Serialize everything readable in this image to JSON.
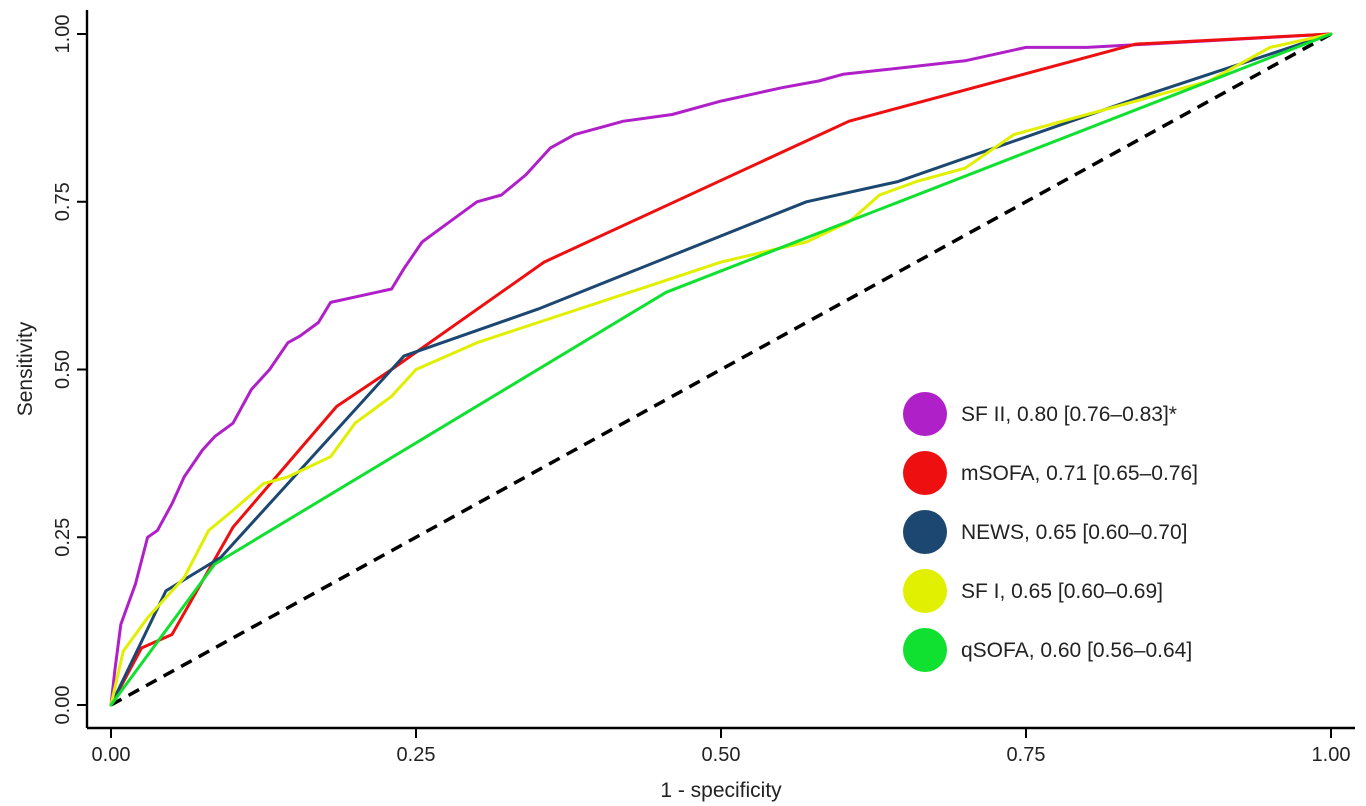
{
  "chart_data": {
    "type": "line",
    "xlabel": "1 - specificity",
    "ylabel": "Sensitivity",
    "xlim": [
      0,
      1
    ],
    "ylim": [
      0,
      1
    ],
    "x_ticks": [
      "0.00",
      "0.25",
      "0.50",
      "0.75",
      "1.00"
    ],
    "y_ticks": [
      "0.00",
      "0.25",
      "0.50",
      "0.75",
      "1.00"
    ],
    "grid": false,
    "legend_position": "bottom-right",
    "reference_line": {
      "x": [
        0,
        1
      ],
      "y": [
        0,
        1
      ],
      "style": "dashed",
      "color": "#000000"
    },
    "series": [
      {
        "name": "SF II, 0.80 [0.76–0.83]*",
        "color": "#b020c8",
        "x": [
          0,
          0.003,
          0.008,
          0.012,
          0.02,
          0.03,
          0.038,
          0.05,
          0.06,
          0.075,
          0.085,
          0.1,
          0.115,
          0.13,
          0.145,
          0.155,
          0.17,
          0.18,
          0.23,
          0.24,
          0.255,
          0.27,
          0.285,
          0.3,
          0.32,
          0.34,
          0.36,
          0.38,
          0.42,
          0.46,
          0.5,
          0.55,
          0.58,
          0.6,
          0.7,
          0.75,
          0.8,
          0.9,
          0.95,
          1.0
        ],
        "y": [
          0,
          0.05,
          0.12,
          0.14,
          0.18,
          0.25,
          0.26,
          0.3,
          0.34,
          0.38,
          0.4,
          0.42,
          0.47,
          0.5,
          0.54,
          0.55,
          0.57,
          0.6,
          0.62,
          0.65,
          0.69,
          0.71,
          0.73,
          0.75,
          0.76,
          0.79,
          0.83,
          0.85,
          0.87,
          0.88,
          0.9,
          0.92,
          0.93,
          0.94,
          0.96,
          0.98,
          0.98,
          0.99,
          0.995,
          1.0
        ]
      },
      {
        "name": "mSOFA, 0.71 [0.65–0.76]",
        "color": "#ee1010",
        "x": [
          0,
          0.025,
          0.05,
          0.1,
          0.185,
          0.23,
          0.355,
          0.605,
          0.84,
          1.0
        ],
        "y": [
          0,
          0.085,
          0.105,
          0.265,
          0.445,
          0.5,
          0.66,
          0.87,
          0.985,
          1.0
        ]
      },
      {
        "name": "NEWS, 0.65 [0.60–0.70]",
        "color": "#1c4770",
        "x": [
          0,
          0.045,
          0.09,
          0.24,
          0.35,
          0.57,
          0.645,
          0.85,
          1.0
        ],
        "y": [
          0,
          0.17,
          0.22,
          0.52,
          0.59,
          0.75,
          0.78,
          0.91,
          1.0
        ]
      },
      {
        "name": "SF I, 0.65 [0.60–0.69]",
        "color": "#e0f000",
        "x": [
          0,
          0.01,
          0.03,
          0.06,
          0.08,
          0.1,
          0.125,
          0.145,
          0.18,
          0.2,
          0.23,
          0.25,
          0.3,
          0.35,
          0.4,
          0.45,
          0.5,
          0.57,
          0.605,
          0.63,
          0.66,
          0.7,
          0.74,
          0.8,
          0.9,
          0.95,
          1.0
        ],
        "y": [
          0,
          0.08,
          0.13,
          0.19,
          0.26,
          0.29,
          0.33,
          0.34,
          0.37,
          0.42,
          0.46,
          0.5,
          0.54,
          0.57,
          0.6,
          0.63,
          0.66,
          0.69,
          0.72,
          0.76,
          0.78,
          0.8,
          0.85,
          0.88,
          0.93,
          0.98,
          1.0
        ]
      },
      {
        "name": "qSOFA, 0.60 [0.56–0.64]",
        "color": "#10e030",
        "x": [
          0,
          0.085,
          0.455,
          1.0
        ],
        "y": [
          0,
          0.21,
          0.615,
          1.0
        ]
      }
    ]
  }
}
